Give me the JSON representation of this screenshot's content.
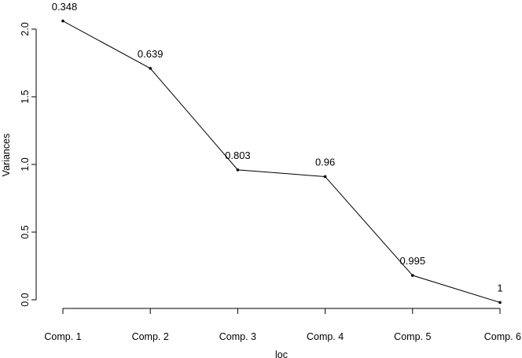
{
  "chart_data": {
    "type": "line",
    "title": "",
    "xlabel": "loc",
    "ylabel": "Variances",
    "categories": [
      "Comp. 1",
      "Comp. 2",
      "Comp. 3",
      "Comp. 4",
      "Comp. 5",
      "Comp. 6"
    ],
    "values": [
      2.06,
      1.71,
      0.96,
      0.91,
      0.18,
      -0.02
    ],
    "point_labels": [
      "0.348",
      "0.639",
      "0.803",
      "0.96",
      "0.995",
      "1"
    ],
    "yticks": [
      "0.0",
      "0.5",
      "1.0",
      "1.5",
      "2.0"
    ],
    "ytick_values": [
      0,
      0.5,
      1,
      1.5,
      2
    ],
    "ylim": [
      -0.04,
      2.1
    ],
    "grid": false,
    "legend": "none"
  }
}
